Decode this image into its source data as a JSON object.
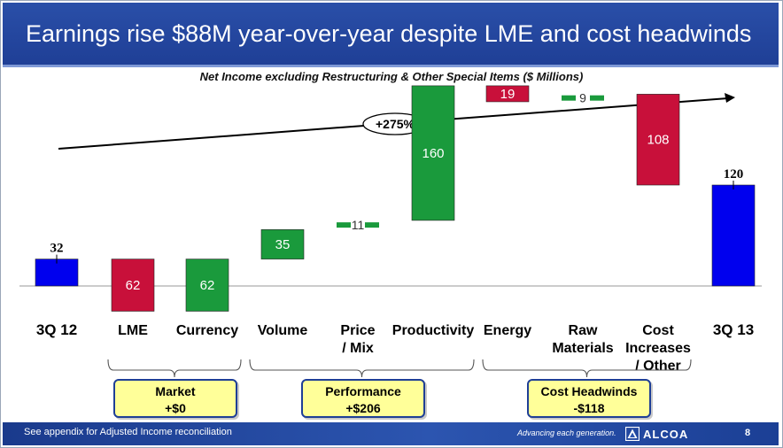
{
  "header": {
    "title": "Earnings rise $88M year-over-year despite LME and cost headwinds"
  },
  "chart_data": {
    "type": "bar",
    "title": "Net Income excluding Restructuring & Other Special Items ($ Millions)",
    "categories": [
      "3Q 12",
      "LME",
      "Currency",
      "Volume",
      "Price / Mix",
      "Productivity",
      "Energy",
      "Raw Materials",
      "Cost Increases / Other",
      "3Q 13"
    ],
    "values": [
      32,
      -62,
      62,
      35,
      11,
      160,
      -19,
      9,
      -108,
      120
    ],
    "data_labels": [
      "32",
      "62",
      "62",
      "35",
      "11",
      "160",
      "19",
      "9",
      "108",
      "120"
    ],
    "annotation": "+275%",
    "colors": {
      "total": "#0000ee",
      "positive": "#1a9a3c",
      "negative": "#c8103a"
    }
  },
  "groups": [
    {
      "title": "Market",
      "value": "+$0"
    },
    {
      "title": "Performance",
      "value": "+$206"
    },
    {
      "title": "Cost Headwinds",
      "value": "-$118"
    }
  ],
  "footer": {
    "note": "See appendix for Adjusted Income reconciliation",
    "tagline": "Advancing each generation.",
    "logo": "ALCOA",
    "page": "8"
  }
}
